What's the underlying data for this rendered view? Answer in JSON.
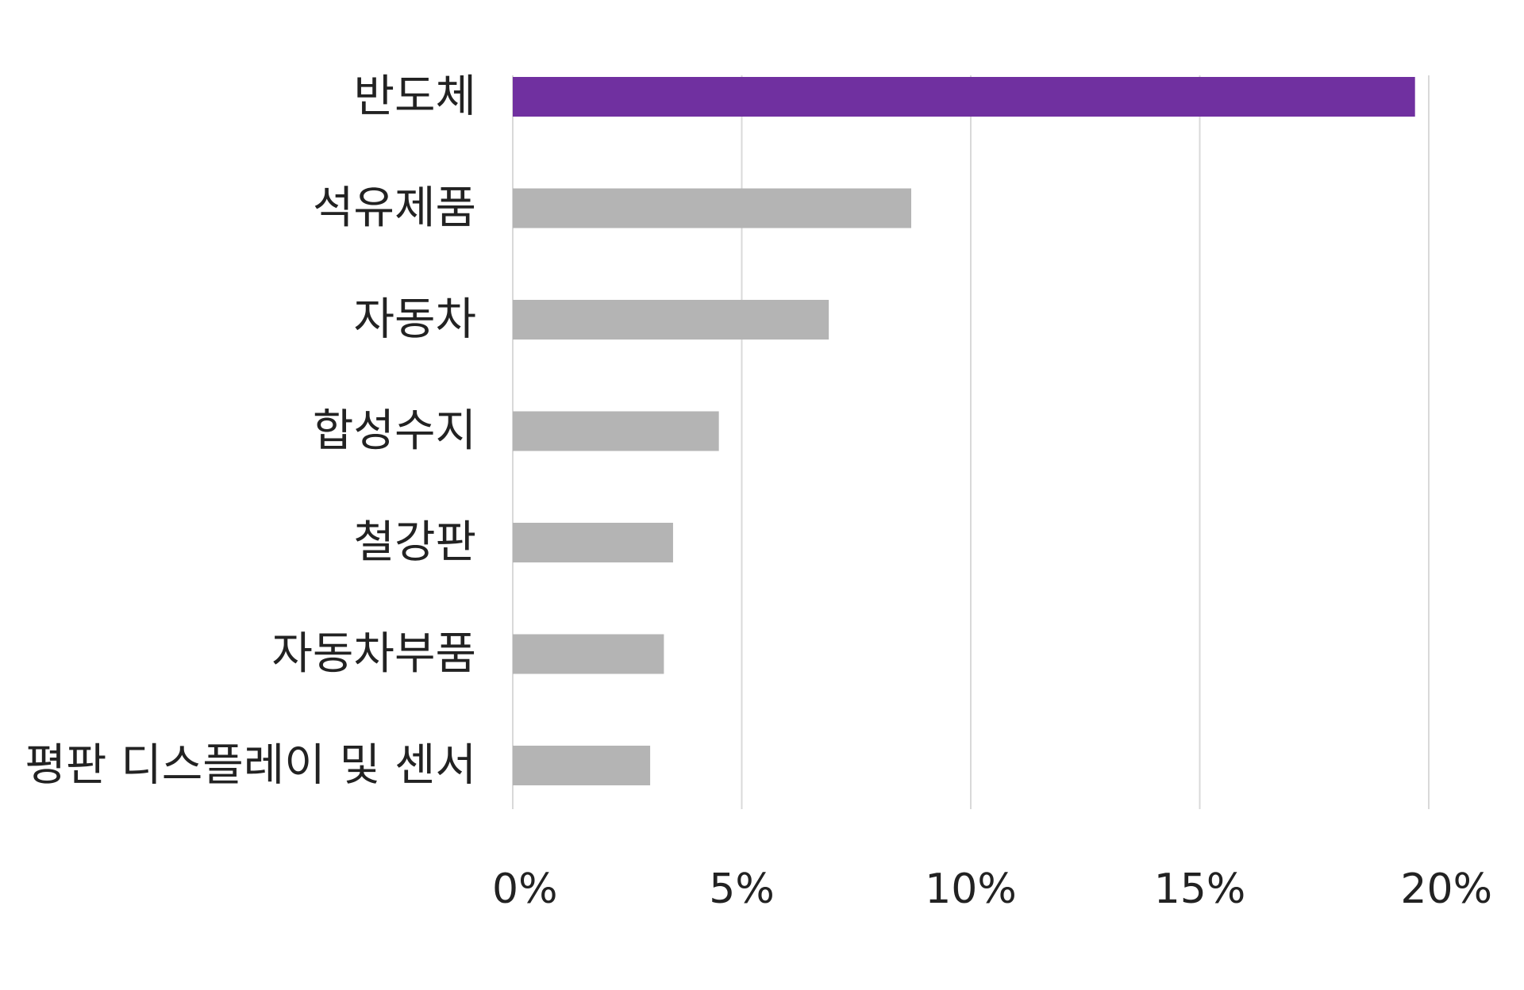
{
  "chart_data": {
    "type": "bar",
    "orientation": "horizontal",
    "title": "",
    "xlabel": "",
    "ylabel": "",
    "categories": [
      "반도체",
      "석유제품",
      "자동차",
      "합성수지",
      "철강판",
      "자동차부품",
      "평판 디스플레이 및 센서"
    ],
    "values": [
      19.7,
      8.7,
      6.9,
      4.5,
      3.5,
      3.3,
      3.0
    ],
    "highlight_index": 0,
    "xlim": [
      0,
      20
    ],
    "x_ticks": [
      0,
      5,
      10,
      15,
      20
    ],
    "x_tick_labels": [
      "0%",
      "5%",
      "10%",
      "15%",
      "20%"
    ],
    "grid": true,
    "colors": {
      "highlight": "#7030a0",
      "default": "#b4b4b4",
      "grid": "#d9d9d9",
      "text": "#222222"
    }
  }
}
